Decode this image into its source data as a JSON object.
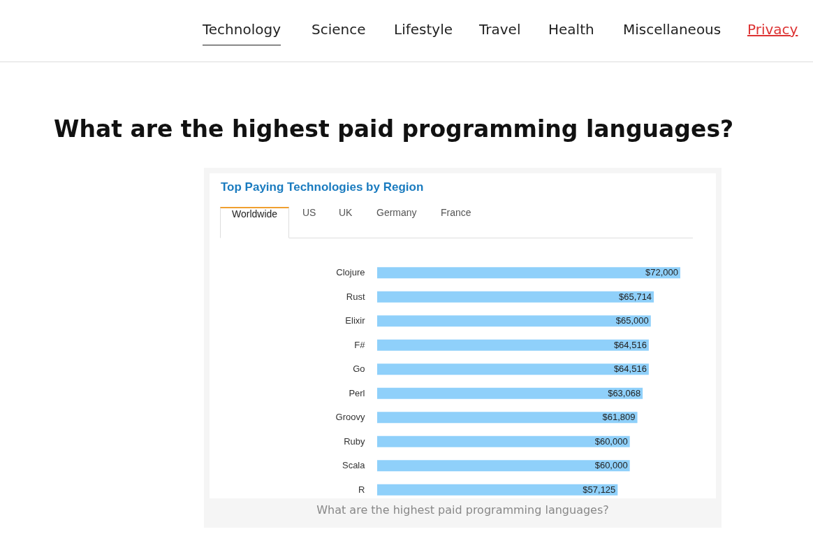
{
  "chart_data": {
    "type": "bar",
    "orientation": "horizontal",
    "title": "What are the highest paid programming languages?",
    "subtitle": "Top Paying Technologies by Region",
    "categories": [
      "Clojure",
      "Rust",
      "Elixir",
      "F#",
      "Go",
      "Perl",
      "Groovy",
      "Ruby",
      "Scala",
      "R"
    ],
    "values": [
      72000,
      65714,
      65000,
      64516,
      64516,
      63068,
      61809,
      60000,
      60000,
      57125
    ],
    "value_labels": [
      "$72,000",
      "$65,714",
      "$65,000",
      "$64,516",
      "$64,516",
      "$63,068",
      "$61,809",
      "$60,000",
      "$60,000",
      "$57,125"
    ],
    "color": "#8fd0fa",
    "annotations": [
      "Technology",
      "Science",
      "Lifestyle",
      "Travel",
      "Health",
      "Miscellaneous",
      "Privacy",
      "Worldwide",
      "US",
      "UK",
      "Germany",
      "France",
      "What are the highest paid programming languages?"
    ]
  }
}
